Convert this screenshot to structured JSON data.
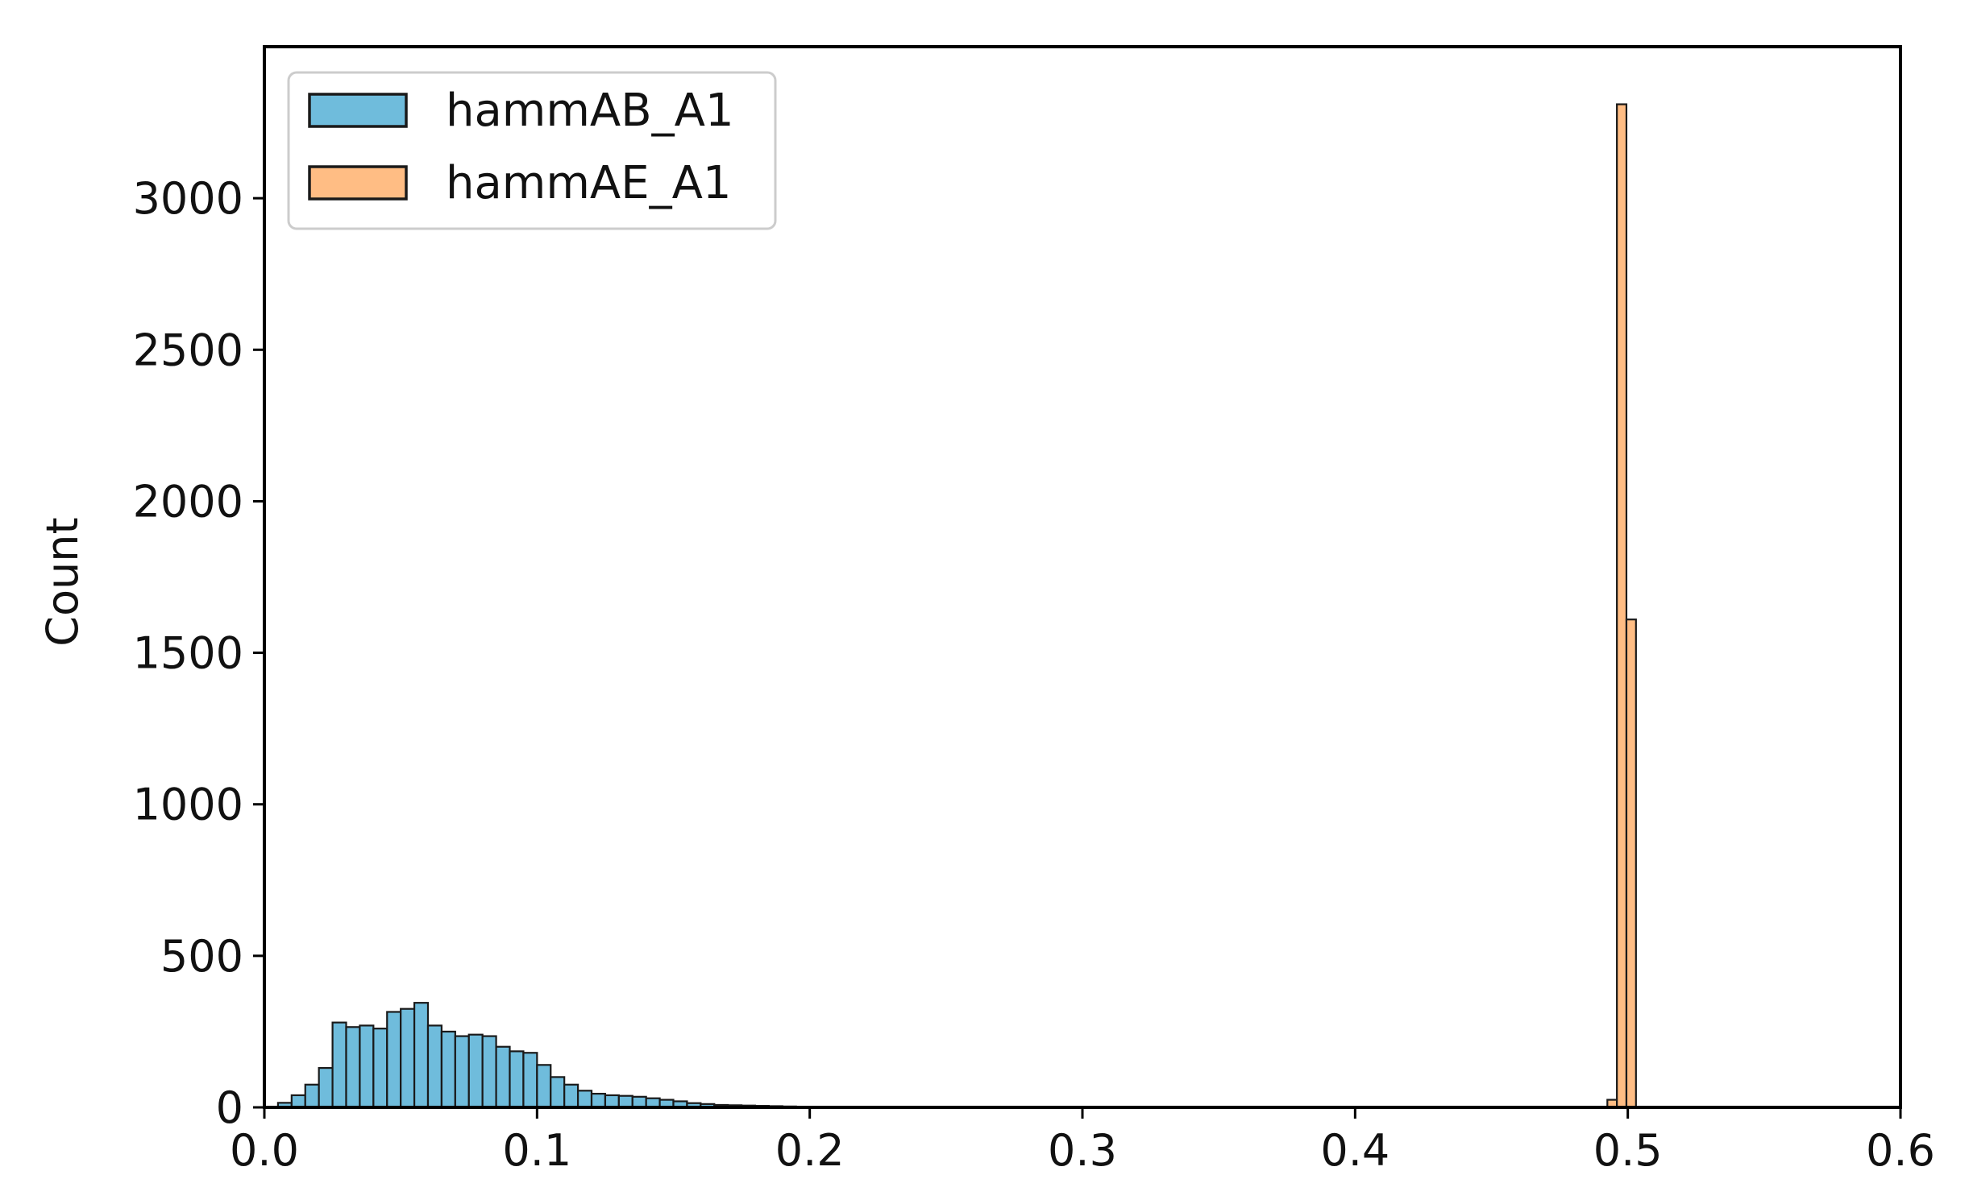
{
  "chart_data": {
    "type": "bar",
    "title": "",
    "xlabel": "",
    "ylabel": "Count",
    "xlim": [
      0.0,
      0.6
    ],
    "ylim": [
      0,
      3500
    ],
    "xticks": [
      0.0,
      0.1,
      0.2,
      0.3,
      0.4,
      0.5,
      0.6
    ],
    "xtick_labels": [
      "0.0",
      "0.1",
      "0.2",
      "0.3",
      "0.4",
      "0.5",
      "0.6"
    ],
    "yticks": [
      0,
      500,
      1000,
      1500,
      2000,
      2500,
      3000
    ],
    "ytick_labels": [
      "0",
      "500",
      "1000",
      "1500",
      "2000",
      "2500",
      "3000"
    ],
    "grid": false,
    "legend_position": "top-left",
    "series": [
      {
        "name": "hammAB_A1",
        "color": "#6fbcdc",
        "bin_width": 0.005,
        "bin_start": 0.005,
        "counts": [
          15,
          40,
          75,
          130,
          280,
          265,
          270,
          260,
          315,
          325,
          345,
          270,
          250,
          235,
          240,
          235,
          200,
          185,
          180,
          140,
          100,
          75,
          55,
          45,
          40,
          38,
          35,
          30,
          25,
          20,
          14,
          11,
          8,
          7,
          6,
          5,
          4,
          3,
          2,
          2,
          2,
          1,
          1
        ]
      },
      {
        "name": "hammAE_A1",
        "color": "#ffbd84",
        "bin_width": 0.0035,
        "bin_start": 0.4925,
        "counts": [
          25,
          3310,
          1610
        ]
      }
    ]
  }
}
